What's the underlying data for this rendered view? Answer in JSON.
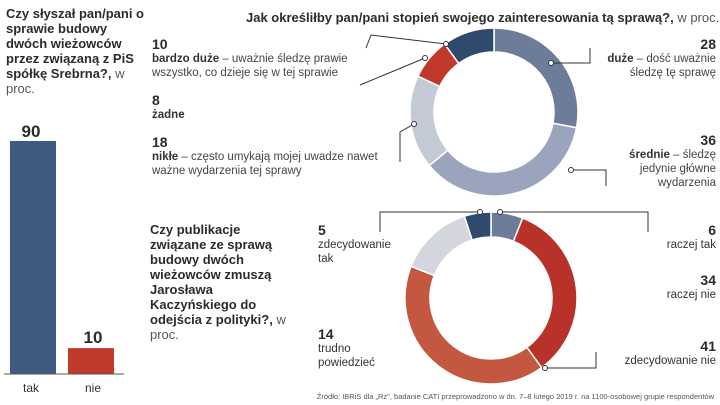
{
  "chart_data": [
    {
      "type": "bar",
      "title": "Czy słyszał pan/pani o sprawie budowy dwóch wieżowców przez związaną z PiS spółkę Srebrna?,",
      "unit": "w proc.",
      "categories": [
        "tak",
        "nie"
      ],
      "values": [
        90,
        10
      ],
      "colors": [
        "#3d5a80",
        "#c0392b"
      ],
      "ylim": [
        0,
        90
      ]
    },
    {
      "type": "pie",
      "title": "Jak określiłby pan/pani stopień swojego zainteresowania tą sprawą?,",
      "unit": "w proc.",
      "slices": [
        {
          "value": 28,
          "name": "duże",
          "desc": " – dość uważnie śledzę tę sprawę",
          "color": "#6c7c99"
        },
        {
          "value": 36,
          "name": "średnie",
          "desc": " – śledzę jedynie główne wydarzenia",
          "color": "#9aa5bd"
        },
        {
          "value": 18,
          "name": "nikłe",
          "desc": " – często umykają mojej uwadze nawet ważne wydarzenia tej sprawy",
          "color": "#c4c9d6"
        },
        {
          "value": 8,
          "name": "żadne",
          "desc": "",
          "color": "#c0392b"
        },
        {
          "value": 10,
          "name": "bardzo duże",
          "desc": " – uważnie śledzę prawie wszystko, co dzieje się w tej sprawie",
          "color": "#2f4a6d"
        }
      ]
    },
    {
      "type": "pie",
      "title": "Czy publikacje związane ze sprawą budowy dwóch wieżowców zmuszą Jarosława Kaczyńskiego do odejścia z polityki?,",
      "unit": "w proc.",
      "slices": [
        {
          "value": 6,
          "name": "raczej tak",
          "color": "#6c7c99"
        },
        {
          "value": 34,
          "name": "raczej nie",
          "color": "#b8322a"
        },
        {
          "value": 41,
          "name": "zdecydowanie nie",
          "color": "#c4573f"
        },
        {
          "value": 14,
          "name": "trudno powiedzieć",
          "color": "#d3d6de"
        },
        {
          "value": 5,
          "name": "zdecydowanie tak",
          "color": "#2f4a6d"
        }
      ]
    }
  ],
  "source": "Źródło: IBRiS dla „Rz\", badanie CATI przeprowadzono w dn. 7–8 lutego 2019 r. na 1100-osobowej grupie respondentów"
}
